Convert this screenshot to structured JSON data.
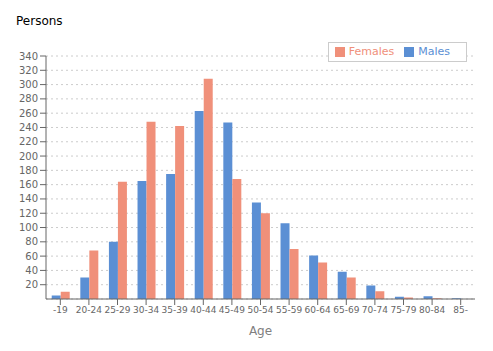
{
  "chart_data": {
    "type": "bar",
    "xlabel": "Age",
    "ylabel": "Persons",
    "categories": [
      "-19",
      "20-24",
      "25-29",
      "30-34",
      "35-39",
      "40-44",
      "45-49",
      "50-54",
      "55-59",
      "60-64",
      "65-69",
      "70-74",
      "75-79",
      "80-84",
      "85-"
    ],
    "series": [
      {
        "name": "Males",
        "color": "#5B8FD4",
        "values": [
          5,
          30,
          80,
          165,
          175,
          263,
          247,
          135,
          106,
          61,
          38,
          19,
          3,
          4,
          1
        ]
      },
      {
        "name": "Females",
        "color": "#F0907A",
        "values": [
          10,
          68,
          164,
          248,
          242,
          308,
          168,
          120,
          70,
          51,
          30,
          11,
          2,
          1,
          0
        ]
      }
    ],
    "ylim": [
      0,
      340
    ],
    "yticks": [
      20,
      40,
      60,
      80,
      100,
      120,
      140,
      160,
      180,
      200,
      220,
      240,
      260,
      280,
      300,
      320,
      340
    ],
    "grid": true,
    "legend": "upper right"
  }
}
